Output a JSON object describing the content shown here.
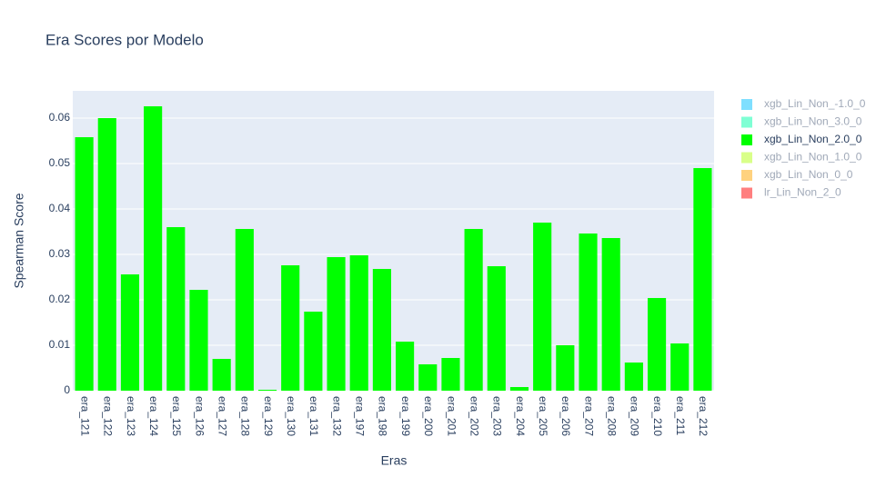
{
  "chart_data": {
    "type": "bar",
    "title": "Era Scores por Modelo",
    "x_label": "Eras",
    "y_label": "Spearman Score",
    "categories": [
      "era_121",
      "era_122",
      "era_123",
      "era_124",
      "era_125",
      "era_126",
      "era_127",
      "era_128",
      "era_129",
      "era_130",
      "era_131",
      "era_132",
      "era_197",
      "era_198",
      "era_199",
      "era_200",
      "era_201",
      "era_202",
      "era_203",
      "era_204",
      "era_205",
      "era_206",
      "era_207",
      "era_208",
      "era_209",
      "era_210",
      "era_211",
      "era_212"
    ],
    "series": [
      {
        "name": "xgb_Lin_Non_-1.0_0",
        "color": "#00bfff",
        "hidden": true
      },
      {
        "name": "xgb_Lin_Non_3.0_0",
        "color": "#00ffaa",
        "hidden": true
      },
      {
        "name": "xgb_Lin_Non_2.0_0",
        "color": "#00ff00",
        "hidden": false,
        "values": [
          0.0558,
          0.06,
          0.0256,
          0.0626,
          0.036,
          0.0222,
          0.007,
          0.0356,
          0.0002,
          0.0276,
          0.0174,
          0.0294,
          0.0298,
          0.0268,
          0.0108,
          0.0058,
          0.0072,
          0.0356,
          0.0274,
          0.0008,
          0.037,
          0.01,
          0.0346,
          0.0336,
          0.0062,
          0.0204,
          0.0104,
          0.049
        ]
      },
      {
        "name": "xgb_Lin_Non_1.0_0",
        "color": "#b4ff14",
        "hidden": true
      },
      {
        "name": "xgb_Lin_Non_0_0",
        "color": "#ffa500",
        "hidden": true
      },
      {
        "name": "lr_Lin_Non_2_0",
        "color": "#ff0000",
        "hidden": true
      }
    ],
    "ylim": [
      0,
      0.066
    ],
    "yticks": [
      0,
      0.01,
      0.02,
      0.03,
      0.04,
      0.05,
      0.06
    ],
    "grid": true,
    "legend": "right"
  }
}
